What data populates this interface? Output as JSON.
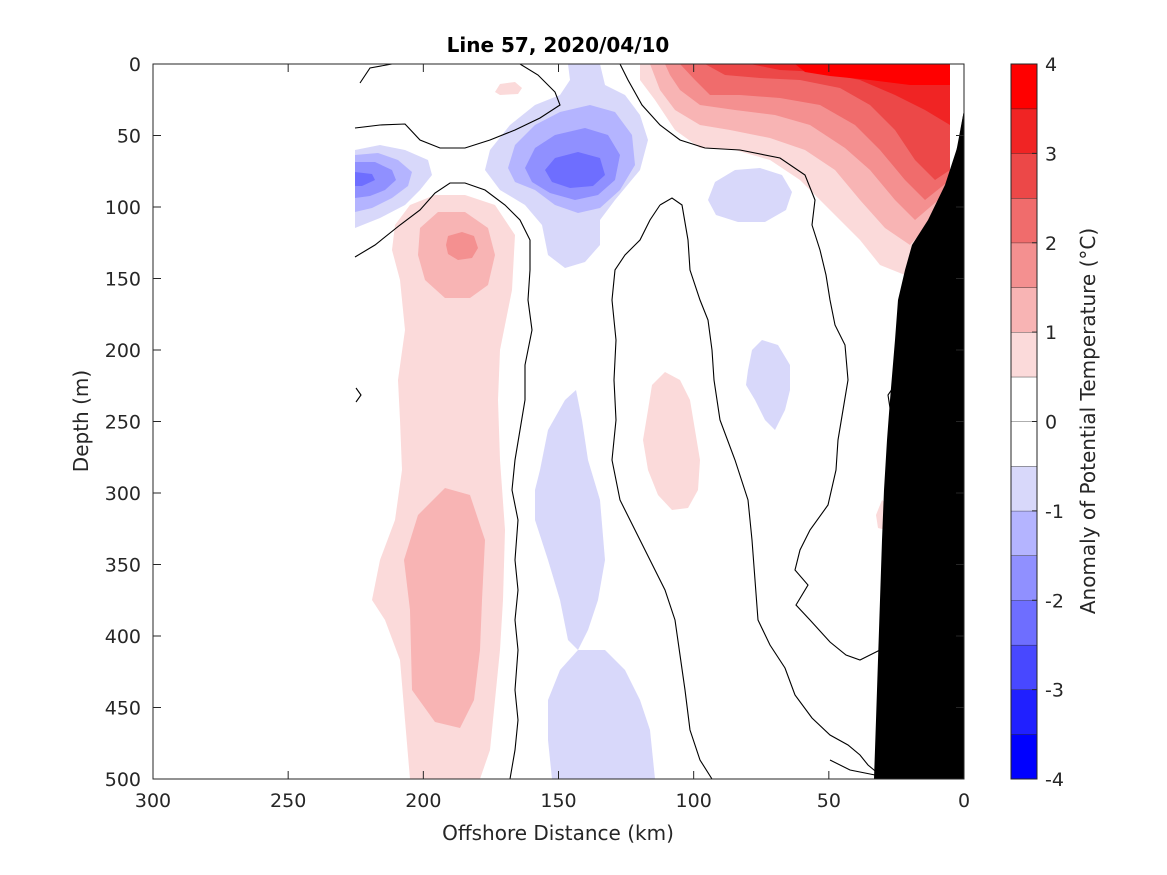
{
  "chart_data": {
    "type": "heatmap",
    "title": "Line 57, 2020/04/10",
    "xlabel": "Offshore Distance (km)",
    "ylabel": "Depth (m)",
    "xlim": [
      300,
      0
    ],
    "ylim": [
      500,
      0
    ],
    "x_reversed": true,
    "y_reversed": true,
    "xticks": [
      "300",
      "250",
      "200",
      "150",
      "100",
      "50",
      "0"
    ],
    "yticks": [
      "0",
      "50",
      "100",
      "150",
      "200",
      "250",
      "300",
      "350",
      "400",
      "450",
      "500"
    ],
    "colorbar": {
      "label": "Anomaly of Potential Temperature (°C)",
      "range": [
        -4,
        4
      ],
      "ticks": [
        "4",
        "3",
        "2",
        "1",
        "0",
        "-1",
        "-2",
        "-3",
        "-4"
      ],
      "levels_low_to_high": [
        {
          "range": [
            -4.0,
            -3.5
          ],
          "color": "#0000ff"
        },
        {
          "range": [
            -3.5,
            -3.0
          ],
          "color": "#2020ff"
        },
        {
          "range": [
            -3.0,
            -2.5
          ],
          "color": "#4848ff"
        },
        {
          "range": [
            -2.5,
            -2.0
          ],
          "color": "#6e6eff"
        },
        {
          "range": [
            -2.0,
            -1.5
          ],
          "color": "#9090ff"
        },
        {
          "range": [
            -1.5,
            -1.0
          ],
          "color": "#b4b4ff"
        },
        {
          "range": [
            -1.0,
            -0.5
          ],
          "color": "#d8d8fa"
        },
        {
          "range": [
            -0.5,
            0.0
          ],
          "color": "#ffffff"
        },
        {
          "range": [
            0.0,
            0.5
          ],
          "color": "#ffffff"
        },
        {
          "range": [
            0.5,
            1.0
          ],
          "color": "#fbdada"
        },
        {
          "range": [
            1.0,
            1.5
          ],
          "color": "#f8b4b4"
        },
        {
          "range": [
            1.5,
            2.0
          ],
          "color": "#f49090"
        },
        {
          "range": [
            2.0,
            2.5
          ],
          "color": "#f06c6c"
        },
        {
          "range": [
            2.5,
            3.0
          ],
          "color": "#ec4848"
        },
        {
          "range": [
            3.0,
            3.5
          ],
          "color": "#f02424"
        },
        {
          "range": [
            3.5,
            4.0
          ],
          "color": "#ff0000"
        }
      ]
    },
    "bathymetry_color": "#000000",
    "zero_contour_color": "#000000",
    "features": [
      {
        "name": "warm-core",
        "anomaly": 3.9,
        "x_km": 30,
        "depth_m": 5
      },
      {
        "name": "warm-band-offshore",
        "anomaly": 1.2,
        "x_km": 188,
        "depth_m": 380
      },
      {
        "name": "warm-blob-upper",
        "anomaly": 1.7,
        "x_km": 186,
        "depth_m": 128
      },
      {
        "name": "cold-core-mid",
        "anomaly": -2.2,
        "x_km": 143,
        "depth_m": 75
      },
      {
        "name": "cold-core-west",
        "anomaly": -2.0,
        "x_km": 222,
        "depth_m": 80
      },
      {
        "name": "cold-band-deep",
        "anomaly": -0.8,
        "x_km": 145,
        "depth_m": 420
      },
      {
        "name": "warm-band-mid",
        "anomaly": 0.8,
        "x_km": 105,
        "depth_m": 275
      },
      {
        "name": "cold-blob-shelf",
        "anomaly": -0.8,
        "x_km": 72,
        "depth_m": 90
      },
      {
        "name": "cold-blob-shelf-deep",
        "anomaly": -0.7,
        "x_km": 72,
        "depth_m": 225
      }
    ]
  }
}
